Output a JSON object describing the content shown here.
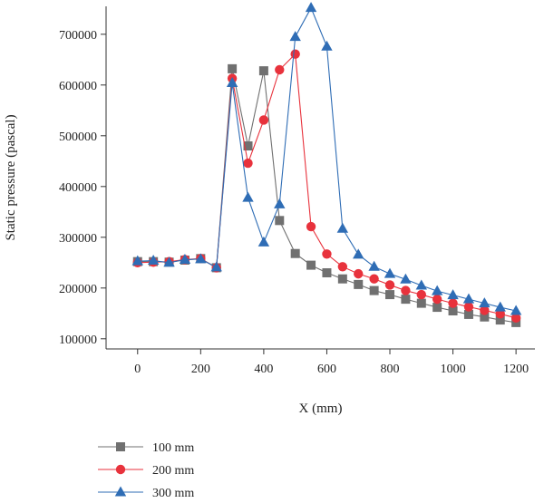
{
  "chart_data": {
    "type": "line",
    "xlabel": "X (mm)",
    "ylabel": "Static pressure (pascal)",
    "xlim": [
      -100,
      1260
    ],
    "ylim": [
      80000,
      755000
    ],
    "xticks": [
      0,
      200,
      400,
      600,
      800,
      1000,
      1200
    ],
    "yticks": [
      100000,
      200000,
      300000,
      400000,
      500000,
      600000,
      700000
    ],
    "grid": false,
    "legend_position": "bottom-left",
    "x": [
      0,
      50,
      100,
      150,
      200,
      250,
      300,
      350,
      400,
      450,
      500,
      550,
      600,
      650,
      700,
      750,
      800,
      850,
      900,
      950,
      1000,
      1050,
      1100,
      1150,
      1200
    ],
    "series": [
      {
        "name": "100 mm",
        "color": "#707070",
        "marker": "square",
        "values": [
          252000,
          252000,
          251000,
          255000,
          258000,
          240000,
          632000,
          480000,
          628000,
          333000,
          268000,
          245000,
          230000,
          218000,
          207000,
          195000,
          187000,
          178000,
          170000,
          162000,
          155000,
          148000,
          143000,
          137000,
          132000
        ]
      },
      {
        "name": "200 mm",
        "color": "#e8323c",
        "marker": "circle",
        "values": [
          250000,
          251000,
          252000,
          256000,
          258000,
          240000,
          613000,
          446000,
          531000,
          630000,
          661000,
          321000,
          267000,
          242000,
          228000,
          218000,
          206000,
          195000,
          187000,
          178000,
          170000,
          163000,
          156000,
          149000,
          141000
        ]
      },
      {
        "name": "300 mm",
        "color": "#2f6db5",
        "marker": "triangle",
        "values": [
          253000,
          254000,
          250000,
          256000,
          257000,
          241000,
          604000,
          378000,
          290000,
          365000,
          695000,
          752000,
          676000,
          317000,
          266000,
          242000,
          228000,
          217000,
          205000,
          194000,
          186000,
          178000,
          170000,
          162000,
          155000
        ]
      }
    ]
  }
}
